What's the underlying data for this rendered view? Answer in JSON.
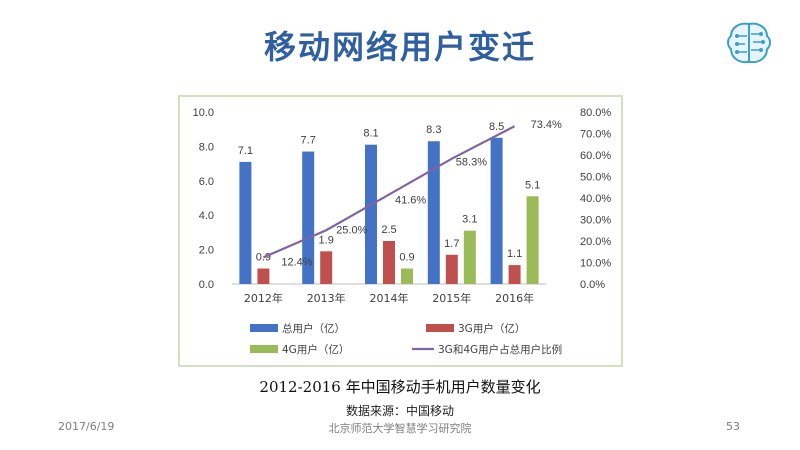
{
  "slide": {
    "title": "移动网络用户变迁",
    "caption": "2012-2016 年中国移动手机用户数量变化",
    "source": "数据来源：中国移动",
    "footer_date": "2017/6/19",
    "footer_center": "北京师范大学智慧学习研究院",
    "page_number": "53"
  },
  "colors": {
    "title": "#2f5fa0",
    "total": "#4472c4",
    "g3": "#c0504d",
    "g4": "#9bbb59",
    "ratio": "#8064a2"
  },
  "chart_data": {
    "type": "bar",
    "categories": [
      "2012年",
      "2013年",
      "2014年",
      "2015年",
      "2016年"
    ],
    "series": [
      {
        "name": "总用户（亿）",
        "kind": "bar",
        "values": [
          7.1,
          7.7,
          8.1,
          8.3,
          8.5
        ],
        "labels": [
          "7.1",
          "7.7",
          "8.1",
          "8.3",
          "8.5"
        ]
      },
      {
        "name": "3G用户（亿）",
        "kind": "bar",
        "values": [
          0.9,
          1.9,
          2.5,
          1.7,
          1.1
        ],
        "labels": [
          "0.9",
          "1.9",
          "2.5",
          "1.7",
          "1.1"
        ]
      },
      {
        "name": "4G用户（亿）",
        "kind": "bar",
        "values": [
          0,
          0,
          0.9,
          3.1,
          5.1
        ],
        "labels": [
          "",
          "",
          "0.9",
          "3.1",
          "5.1"
        ]
      },
      {
        "name": "3G和4G用户占总用户比例",
        "kind": "line",
        "axis": "right",
        "values": [
          12.4,
          25.0,
          41.6,
          58.3,
          73.4
        ],
        "labels": [
          "12.4%",
          "25.0%",
          "41.6%",
          "58.3%",
          "73.4%"
        ]
      }
    ],
    "y_left": {
      "range": [
        0,
        10
      ],
      "ticks": [
        "0.0",
        "2.0",
        "4.0",
        "6.0",
        "8.0",
        "10.0"
      ]
    },
    "y_right": {
      "range": [
        0,
        80
      ],
      "ticks": [
        "0.0%",
        "10.0%",
        "20.0%",
        "30.0%",
        "40.0%",
        "50.0%",
        "60.0%",
        "70.0%",
        "80.0%"
      ]
    },
    "grid": false,
    "legend_position": "bottom"
  }
}
